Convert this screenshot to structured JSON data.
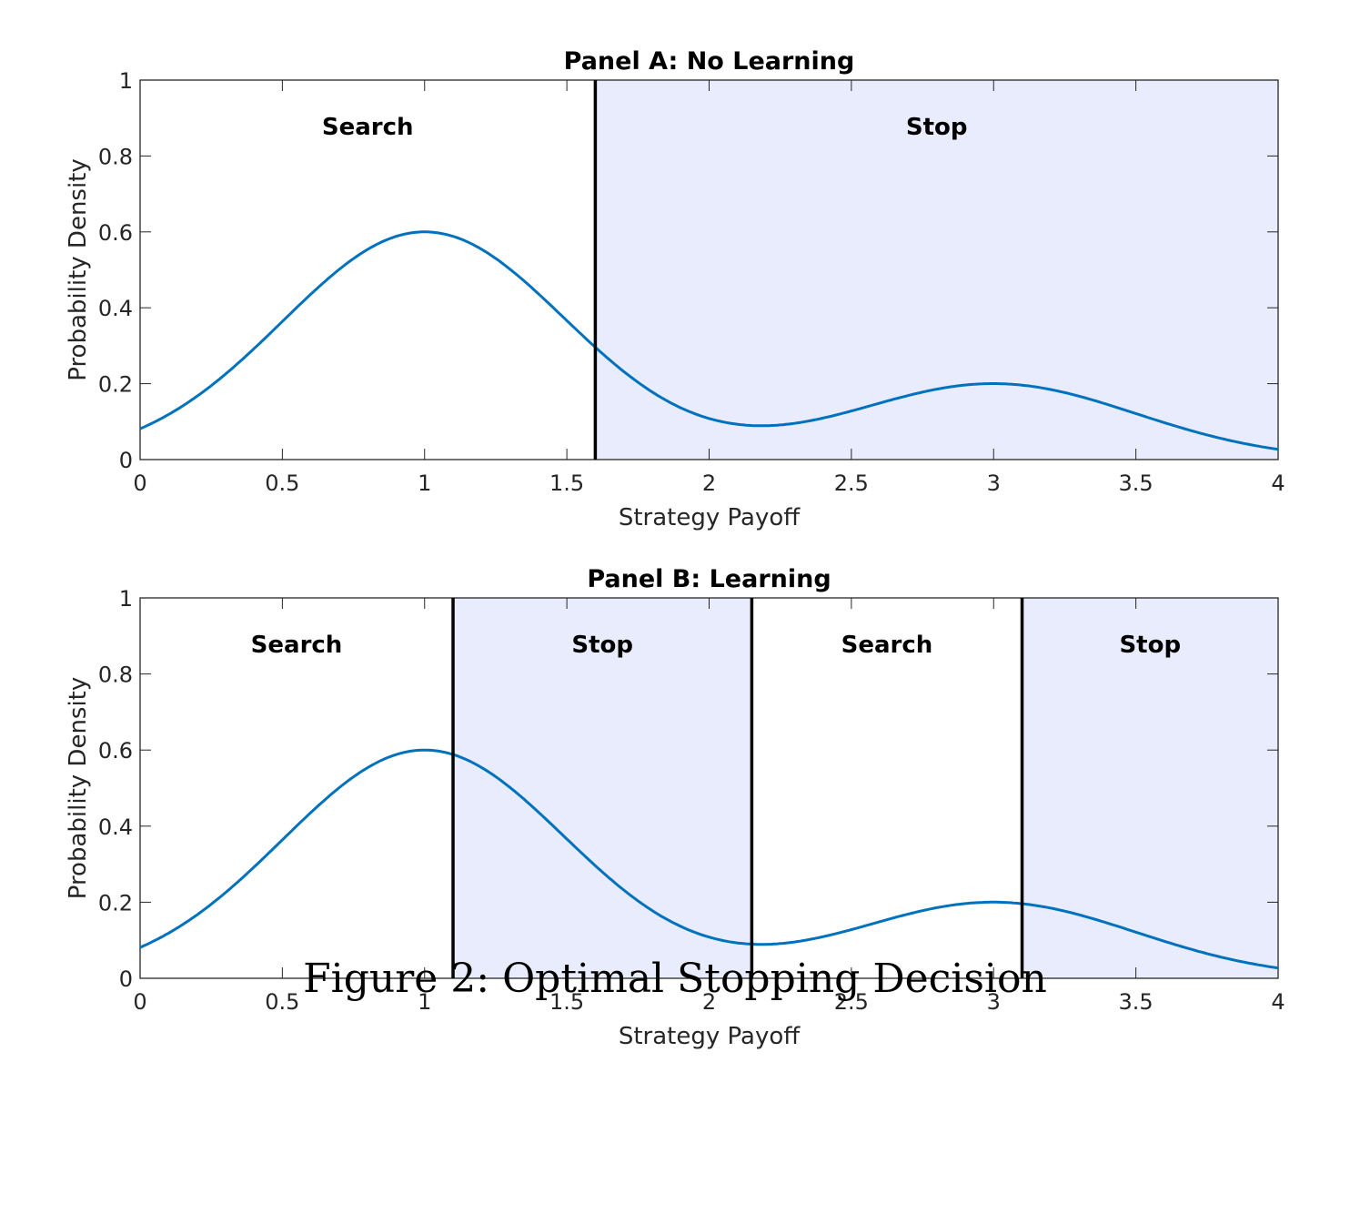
{
  "caption": "Figure 2: Optimal Stopping Decision",
  "chart_data": [
    {
      "type": "line",
      "title": "Panel A: No Learning",
      "xlabel": "Strategy Payoff",
      "ylabel": "Probability Density",
      "xlim": [
        0,
        4
      ],
      "ylim": [
        0,
        1
      ],
      "xticks": [
        "0",
        "0.5",
        "1",
        "1.5",
        "2",
        "2.5",
        "3",
        "3.5",
        "4"
      ],
      "yticks": [
        "0",
        "0.2",
        "0.4",
        "0.6",
        "0.8",
        "1"
      ],
      "series": [
        {
          "name": "density",
          "x": [
            0,
            0.5,
            1,
            1.5,
            2,
            2.2,
            2.5,
            3,
            3.5,
            4
          ],
          "values": [
            0.08,
            0.36,
            0.6,
            0.37,
            0.12,
            0.09,
            0.13,
            0.2,
            0.12,
            0.03
          ]
        }
      ],
      "boundaries": [
        1.6
      ],
      "regions": [
        {
          "label": "Search",
          "from": 0,
          "to": 1.6,
          "shaded": false
        },
        {
          "label": "Stop",
          "from": 1.6,
          "to": 4,
          "shaded": true
        }
      ],
      "curve_color": "#0072BD",
      "shade_color": "#E8ECFC"
    },
    {
      "type": "line",
      "title": "Panel B: Learning",
      "xlabel": "Strategy Payoff",
      "ylabel": "Probability Density",
      "xlim": [
        0,
        4
      ],
      "ylim": [
        0,
        1
      ],
      "xticks": [
        "0",
        "0.5",
        "1",
        "1.5",
        "2",
        "2.5",
        "3",
        "3.5",
        "4"
      ],
      "yticks": [
        "0",
        "0.2",
        "0.4",
        "0.6",
        "0.8",
        "1"
      ],
      "series": [
        {
          "name": "density",
          "x": [
            0,
            0.5,
            1,
            1.5,
            2,
            2.2,
            2.5,
            3,
            3.5,
            4
          ],
          "values": [
            0.08,
            0.36,
            0.6,
            0.37,
            0.12,
            0.09,
            0.13,
            0.2,
            0.12,
            0.03
          ]
        }
      ],
      "boundaries": [
        1.1,
        2.15,
        3.1
      ],
      "regions": [
        {
          "label": "Search",
          "from": 0,
          "to": 1.1,
          "shaded": false
        },
        {
          "label": "Stop",
          "from": 1.1,
          "to": 2.15,
          "shaded": true
        },
        {
          "label": "Search",
          "from": 2.15,
          "to": 3.1,
          "shaded": false
        },
        {
          "label": "Stop",
          "from": 3.1,
          "to": 4,
          "shaded": true
        }
      ],
      "curve_color": "#0072BD",
      "shade_color": "#E8ECFC"
    }
  ]
}
